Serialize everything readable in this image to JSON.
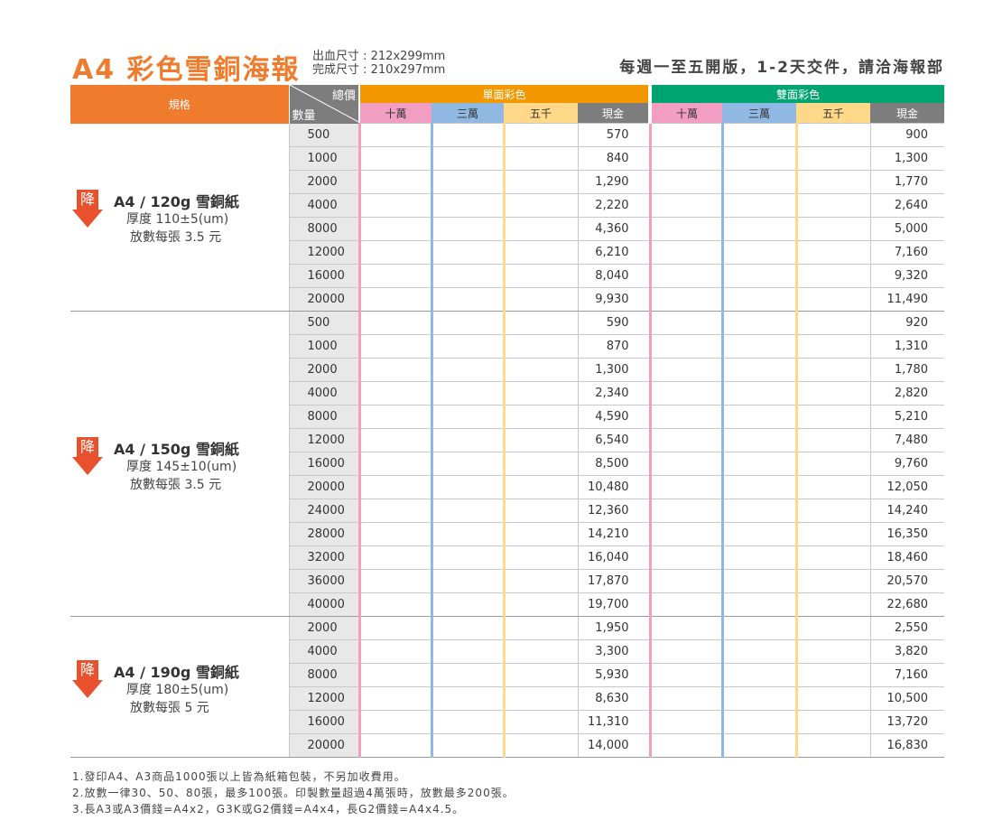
{
  "header": {
    "title": "A4 彩色雪銅海報",
    "size_bleed": "出血尺寸 : 212x299mm",
    "size_finished": "完成尺寸 : 210x297mm",
    "notice": "每週一至五開版，1-2天交件，請洽海報部"
  },
  "table_header": {
    "spec": "規格",
    "total_price": "總價",
    "quantity": "數量",
    "single_side": "單面彩色",
    "double_side": "雙面彩色",
    "cols": [
      "十萬",
      "三萬",
      "五千",
      "現金"
    ]
  },
  "groups": [
    {
      "name": "A4 / 120g 雪銅紙",
      "thickness": "厚度 110±5(um)",
      "fee": "放數每張 3.5 元",
      "badge": "降",
      "rows": [
        {
          "qty": "500",
          "single": "570",
          "double": "900"
        },
        {
          "qty": "1000",
          "single": "840",
          "double": "1,300"
        },
        {
          "qty": "2000",
          "single": "1,290",
          "double": "1,770"
        },
        {
          "qty": "4000",
          "single": "2,220",
          "double": "2,640"
        },
        {
          "qty": "8000",
          "single": "4,360",
          "double": "5,000"
        },
        {
          "qty": "12000",
          "single": "6,210",
          "double": "7,160"
        },
        {
          "qty": "16000",
          "single": "8,040",
          "double": "9,320"
        },
        {
          "qty": "20000",
          "single": "9,930",
          "double": "11,490"
        }
      ]
    },
    {
      "name": "A4 / 150g 雪銅紙",
      "thickness": "厚度 145±10(um)",
      "fee": "放數每張 3.5 元",
      "badge": "降",
      "rows": [
        {
          "qty": "500",
          "single": "590",
          "double": "920"
        },
        {
          "qty": "1000",
          "single": "870",
          "double": "1,310"
        },
        {
          "qty": "2000",
          "single": "1,300",
          "double": "1,780"
        },
        {
          "qty": "4000",
          "single": "2,340",
          "double": "2,820"
        },
        {
          "qty": "8000",
          "single": "4,590",
          "double": "5,210"
        },
        {
          "qty": "12000",
          "single": "6,540",
          "double": "7,480"
        },
        {
          "qty": "16000",
          "single": "8,500",
          "double": "9,760"
        },
        {
          "qty": "20000",
          "single": "10,480",
          "double": "12,050"
        },
        {
          "qty": "24000",
          "single": "12,360",
          "double": "14,240"
        },
        {
          "qty": "28000",
          "single": "14,210",
          "double": "16,350"
        },
        {
          "qty": "32000",
          "single": "16,040",
          "double": "18,460"
        },
        {
          "qty": "36000",
          "single": "17,870",
          "double": "20,570"
        },
        {
          "qty": "40000",
          "single": "19,700",
          "double": "22,680"
        }
      ]
    },
    {
      "name": "A4 / 190g 雪銅紙",
      "thickness": "厚度 180±5(um)",
      "fee": "放數每張 5 元",
      "badge": "降",
      "rows": [
        {
          "qty": "2000",
          "single": "1,950",
          "double": "2,550"
        },
        {
          "qty": "4000",
          "single": "3,300",
          "double": "3,820"
        },
        {
          "qty": "8000",
          "single": "5,930",
          "double": "7,160"
        },
        {
          "qty": "12000",
          "single": "8,630",
          "double": "10,500"
        },
        {
          "qty": "16000",
          "single": "11,310",
          "double": "13,720"
        },
        {
          "qty": "20000",
          "single": "14,000",
          "double": "16,830"
        }
      ]
    }
  ],
  "notes": [
    "1.發印A4、A3商品1000張以上皆為紙箱包裝，不另加收費用。",
    "2.放數一律30、50、80張，最多100張。印製數量超過4萬張時，放數最多200張。",
    "3.長A3或A3價錢=A4x2，G3K或G2價錢=A4x4，長G2價錢=A4x4.5。"
  ],
  "colors": {
    "title": "#ef7b2d",
    "single_header": "#f39800",
    "double_header": "#00a46e",
    "col_100k": "#f19ec2",
    "col_30k": "#8fb8e3",
    "col_5k": "#ffd88a",
    "col_cash": "#7d7d7d",
    "badge": "#e8502e"
  }
}
